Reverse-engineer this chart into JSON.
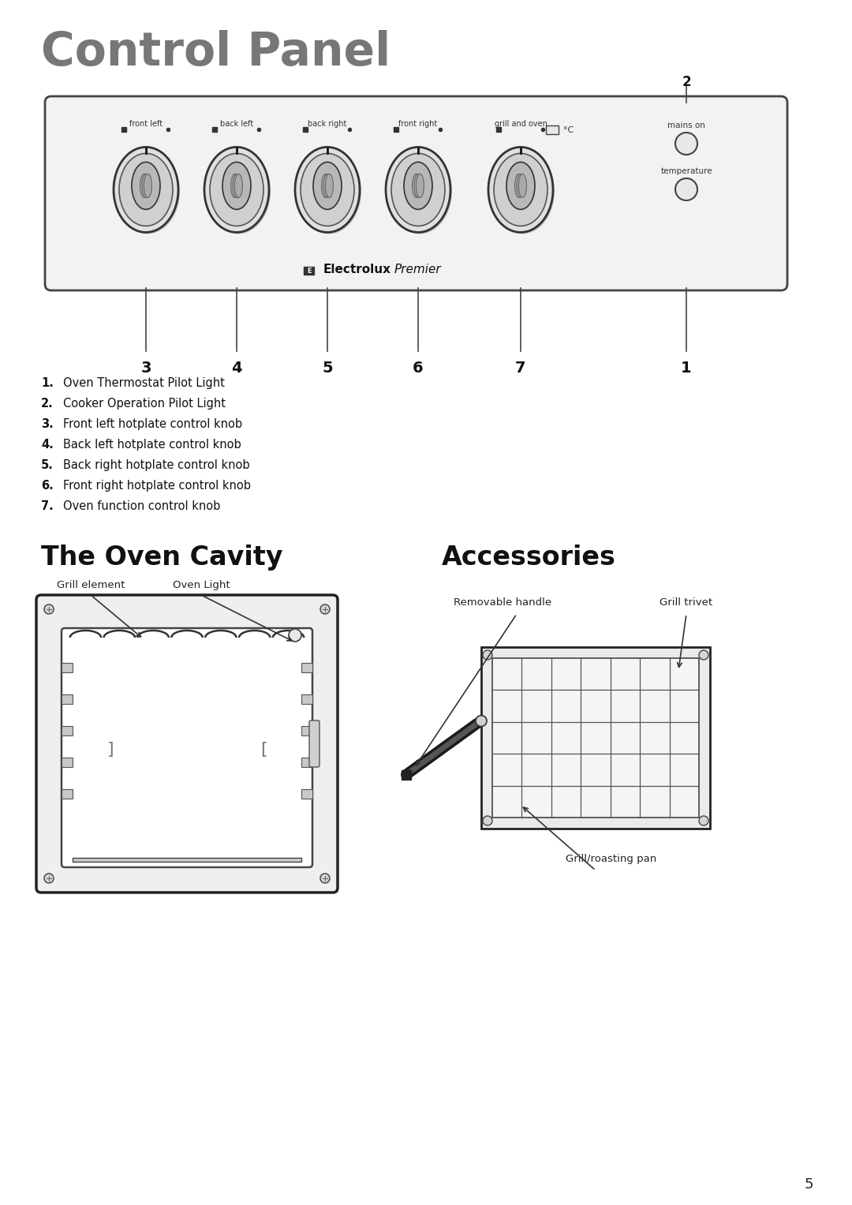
{
  "page_title": "Control Panel",
  "section2_title": "The Oven Cavity",
  "section3_title": "Accessories",
  "bg_color": "#ffffff",
  "text_color": "#111111",
  "title_color": "#777777",
  "page_number": "5",
  "legend_items": [
    {
      "num": "1.",
      "text": "Oven Thermostat Pilot Light"
    },
    {
      "num": "2.",
      "text": "Cooker Operation Pilot Light"
    },
    {
      "num": "3.",
      "text": "Front left hotplate control knob"
    },
    {
      "num": "4.",
      "text": "Back left hotplate control knob"
    },
    {
      "num": "5.",
      "text": "Back right hotplate control knob"
    },
    {
      "num": "6.",
      "text": "Front right hotplate control knob"
    },
    {
      "num": "7.",
      "text": "Oven function control knob"
    }
  ],
  "knob_labels": [
    "front left",
    "back left",
    "back right",
    "front right",
    "grill and oven"
  ],
  "callout_labels_bottom": [
    "3",
    "4",
    "5",
    "6",
    "7",
    "1"
  ],
  "right_labels": [
    "mains on",
    "temperature"
  ],
  "oven_cavity_labels": [
    "Grill element",
    "Oven Light"
  ],
  "accessories_labels": [
    "Removable handle",
    "Grill trivet",
    "Grill/roasting pan"
  ]
}
